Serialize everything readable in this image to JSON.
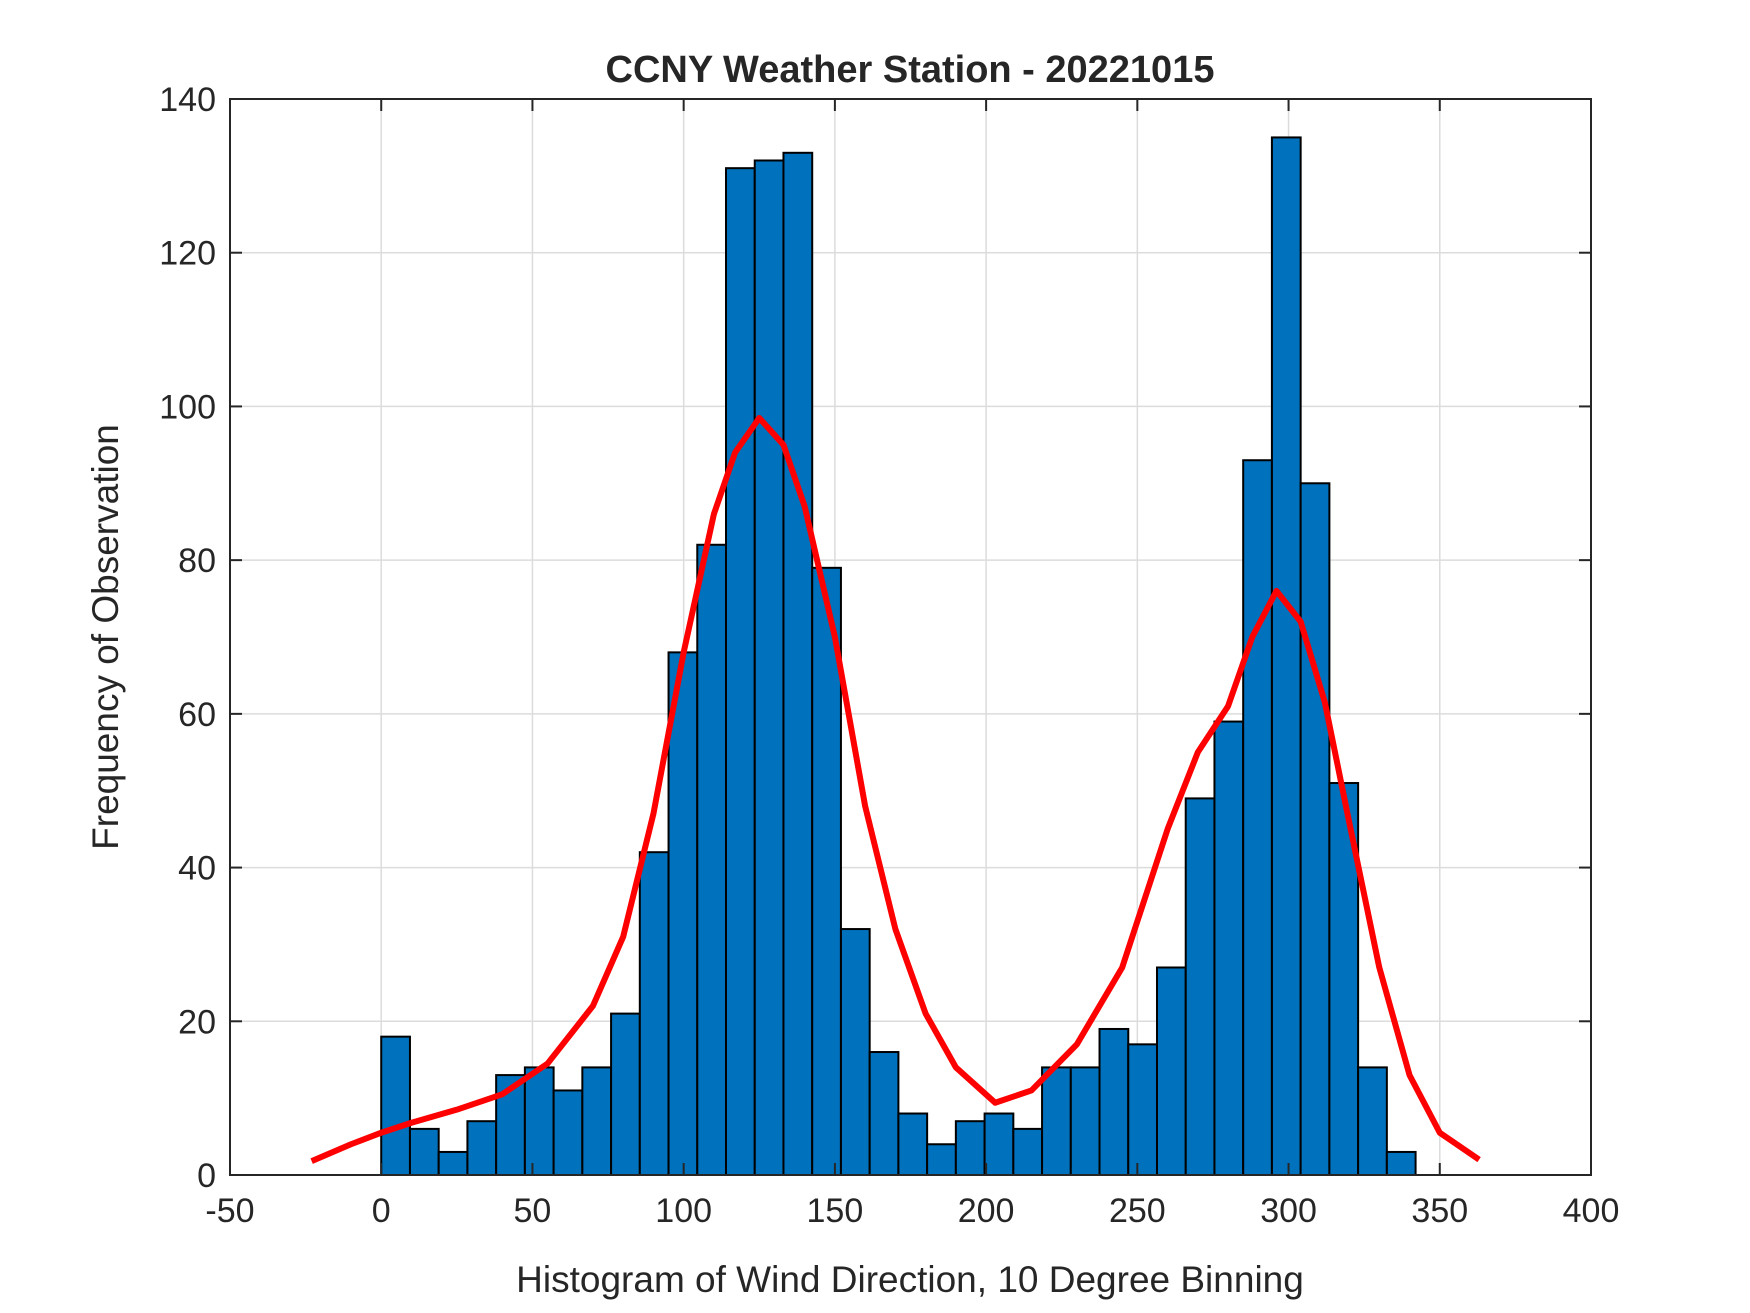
{
  "chart_data": {
    "type": "histogram",
    "title": "CCNY Weather Station - 20221015",
    "x_label": "Histogram of Wind Direction, 10 Degree Binning",
    "y_label": "Frequency of Observation",
    "bins": [
      0,
      9.5,
      19,
      28.5,
      38,
      47.5,
      57,
      66.5,
      76,
      85.5,
      95,
      104.5,
      114,
      123.5,
      133,
      142.5,
      152,
      161.5,
      171,
      180.5,
      190,
      199.5,
      209,
      218.5,
      228,
      237.5,
      247,
      256.5,
      266,
      275.5,
      285,
      294.5,
      304,
      313.5,
      323,
      332.5,
      342
    ],
    "values": [
      18,
      6,
      3,
      7,
      13,
      14,
      11,
      14,
      21,
      42,
      68,
      82,
      131,
      132,
      133,
      79,
      32,
      16,
      8,
      4,
      7,
      8,
      6,
      14,
      14,
      19,
      17,
      27,
      49,
      59,
      93,
      135,
      90,
      51,
      14,
      3
    ],
    "color": "#0072bd",
    "curve": {
      "color": "#ff0000",
      "x": [
        -23,
        -10,
        0,
        10,
        25,
        40,
        55,
        70,
        80,
        90,
        100,
        110,
        117,
        125,
        133,
        140,
        150,
        160,
        170,
        180,
        190,
        203,
        215,
        230,
        245,
        260,
        270,
        280,
        288,
        296,
        304,
        312,
        320,
        330,
        340,
        350,
        363
      ],
      "y": [
        1.8,
        4,
        5.5,
        6.8,
        8.5,
        10.5,
        14.5,
        22,
        31,
        47,
        68,
        86,
        94,
        98.5,
        95,
        87,
        70,
        48,
        32,
        21,
        14,
        9.4,
        11,
        17,
        27,
        45,
        55,
        61,
        70,
        76,
        72,
        61.5,
        46,
        27,
        13,
        5.5,
        2
      ]
    },
    "xlim": [
      -50,
      400
    ],
    "ylim": [
      0,
      140
    ],
    "xticks": [
      -50,
      0,
      50,
      100,
      150,
      200,
      250,
      300,
      350,
      400
    ],
    "yticks": [
      0,
      20,
      40,
      60,
      80,
      100,
      120,
      140
    ],
    "grid": true
  }
}
